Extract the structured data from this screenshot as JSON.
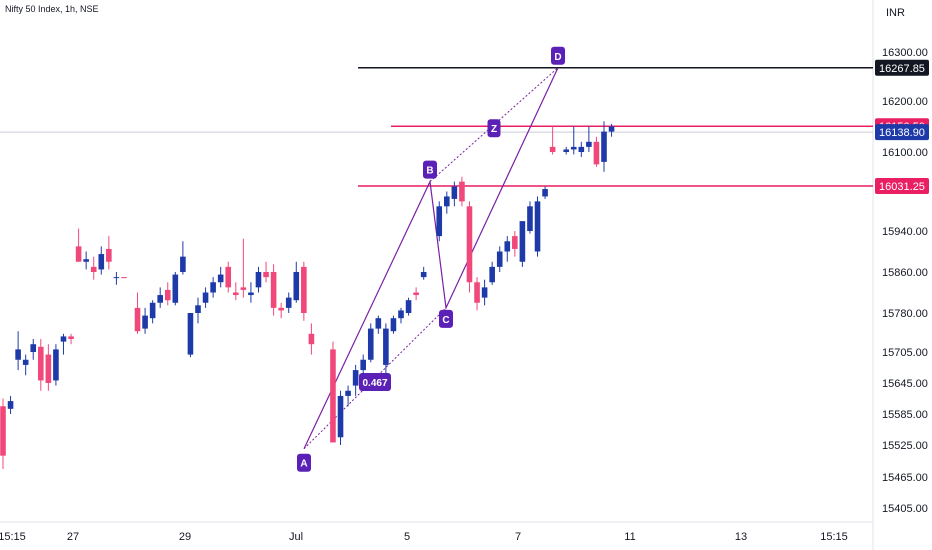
{
  "header": {
    "title": "Nifty 50 Index, 1h, NSE",
    "currency": "INR"
  },
  "colors": {
    "up": "#1e3aa8",
    "down": "#f0487a",
    "pattern": "#7b1fa2",
    "pattern_point": "#5b21b6",
    "level_black": "#131722",
    "level_red": "#e91e63",
    "last_price": "#1e3aa8"
  },
  "chart_data": {
    "type": "candlestick",
    "y_axis": {
      "ticks": [
        "16300.00",
        "16200.00",
        "16100.00",
        "15940.00",
        "15860.00",
        "15780.00",
        "15705.00",
        "15645.00",
        "15585.00",
        "15525.00",
        "15465.00",
        "15405.00"
      ],
      "tick_values": [
        16300,
        16200,
        16100,
        15940,
        15860,
        15780,
        15705,
        15645,
        15585,
        15525,
        15465,
        15405
      ]
    },
    "x_axis": {
      "ticks": [
        "15:15",
        "27",
        "29",
        "Jul",
        "5",
        "7",
        "11",
        "13",
        "15:15"
      ]
    },
    "levels": [
      {
        "label": "16267.85",
        "value": 16267.85,
        "color": "black"
      },
      {
        "label": "16150.50",
        "value": 16150.5,
        "color": "red"
      },
      {
        "label": "16138.90",
        "value": 16138.9,
        "color": "blue"
      },
      {
        "label": "16031.25",
        "value": 16031.25,
        "color": "red"
      }
    ],
    "pattern_points": [
      {
        "label": "A",
        "value": 15518
      },
      {
        "label": "B",
        "value": 16040
      },
      {
        "label": "C",
        "value": 15790
      },
      {
        "label": "D",
        "value": 16267.85
      }
    ],
    "ratio_label": "0.467",
    "z_label": "Z",
    "candles": [
      [
        15600,
        15615,
        15480,
        15505
      ],
      [
        15595,
        15620,
        15585,
        15610
      ],
      [
        15690,
        15745,
        15670,
        15710
      ],
      [
        15680,
        15700,
        15660,
        15690
      ],
      [
        15705,
        15730,
        15690,
        15720
      ],
      [
        15715,
        15730,
        15630,
        15650
      ],
      [
        15700,
        15720,
        15630,
        15645
      ],
      [
        15650,
        15720,
        15640,
        15710
      ],
      [
        15725,
        15740,
        15700,
        15735
      ],
      [
        15735,
        15740,
        15720,
        15730
      ],
      [
        15910,
        15945,
        15880,
        15880
      ],
      [
        15880,
        15900,
        15865,
        15885
      ],
      [
        15870,
        15890,
        15845,
        15860
      ],
      [
        15865,
        15910,
        15855,
        15895
      ],
      [
        15905,
        15930,
        15865,
        15880
      ],
      [
        15850,
        15860,
        15835,
        15850
      ],
      [
        15850,
        15850,
        15848,
        15849
      ],
      [
        15790,
        15820,
        15740,
        15745
      ],
      [
        15750,
        15790,
        15740,
        15775
      ],
      [
        15770,
        15805,
        15760,
        15800
      ],
      [
        15800,
        15830,
        15790,
        15815
      ],
      [
        15825,
        15840,
        15795,
        15805
      ],
      [
        15800,
        15860,
        15795,
        15855
      ],
      [
        15860,
        15920,
        15855,
        15890
      ],
      [
        15700,
        15780,
        15695,
        15780
      ],
      [
        15780,
        15810,
        15760,
        15795
      ],
      [
        15800,
        15830,
        15790,
        15820
      ],
      [
        15820,
        15850,
        15810,
        15840
      ],
      [
        15840,
        15870,
        15830,
        15855
      ],
      [
        15870,
        15880,
        15820,
        15830
      ],
      [
        15820,
        15840,
        15805,
        15815
      ],
      [
        15830,
        15925,
        15810,
        15825
      ],
      [
        15815,
        15840,
        15800,
        15820
      ],
      [
        15830,
        15870,
        15820,
        15860
      ],
      [
        15860,
        15880,
        15840,
        15850
      ],
      [
        15860,
        15875,
        15775,
        15790
      ],
      [
        15790,
        15800,
        15770,
        15785
      ],
      [
        15790,
        15820,
        15780,
        15810
      ],
      [
        15805,
        15880,
        15800,
        15860
      ],
      [
        15870,
        15880,
        15765,
        15780
      ],
      [
        15740,
        15760,
        15700,
        15720
      ],
      [
        15710,
        15725,
        15530,
        15530
      ],
      [
        15540,
        15630,
        15525,
        15620
      ],
      [
        15620,
        15640,
        15600,
        15630
      ],
      [
        15640,
        15680,
        15620,
        15670
      ],
      [
        15670,
        15700,
        15660,
        15690
      ],
      [
        15690,
        15760,
        15685,
        15750
      ],
      [
        15750,
        15775,
        15740,
        15770
      ],
      [
        15680,
        15760,
        15660,
        15750
      ],
      [
        15745,
        15775,
        15740,
        15770
      ],
      [
        15770,
        15790,
        15760,
        15785
      ],
      [
        15780,
        15810,
        15775,
        15805
      ],
      [
        15820,
        15830,
        15805,
        15815
      ],
      [
        15850,
        15870,
        15845,
        15860
      ],
      [
        15930,
        16000,
        15920,
        15990
      ],
      [
        15990,
        16020,
        15975,
        16010
      ],
      [
        16005,
        16040,
        15990,
        16030
      ],
      [
        16040,
        16050,
        15990,
        16000
      ],
      [
        15990,
        16000,
        15820,
        15840
      ],
      [
        15840,
        15850,
        15785,
        15800
      ],
      [
        15810,
        15845,
        15795,
        15830
      ],
      [
        15840,
        15880,
        15835,
        15870
      ],
      [
        15870,
        15910,
        15860,
        15900
      ],
      [
        15900,
        15930,
        15880,
        15920
      ],
      [
        15930,
        15940,
        15890,
        15905
      ],
      [
        15880,
        15960,
        15870,
        15960
      ],
      [
        15940,
        16000,
        15935,
        15990
      ],
      [
        15900,
        16010,
        15890,
        16000
      ],
      [
        16010,
        16030,
        16005,
        16025
      ],
      [
        16110,
        16150,
        16095,
        16100
      ],
      [
        16100,
        16110,
        16095,
        16105
      ],
      [
        16105,
        16150,
        16095,
        16110
      ],
      [
        16100,
        16120,
        16090,
        16110
      ],
      [
        16110,
        16150,
        16100,
        16120
      ],
      [
        16120,
        16130,
        16070,
        16075
      ],
      [
        16080,
        16160,
        16060,
        16140
      ],
      [
        16140,
        16155,
        16130,
        16150
      ]
    ]
  }
}
